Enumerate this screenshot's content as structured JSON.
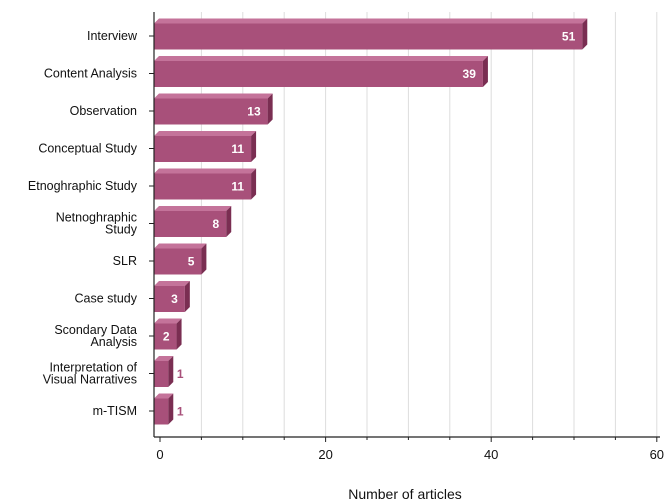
{
  "chart_data": {
    "type": "bar",
    "orientation": "horizontal",
    "categories": [
      "Interview",
      "Content Analysis",
      "Observation",
      "Conceptual Study",
      "Etnoghraphic Study",
      "Netnoghraphic Study",
      "SLR",
      "Case study",
      "Scondary Data Analysis",
      "Interpretation of Visual Narratives",
      "m-TISM"
    ],
    "category_lines": [
      [
        "Interview"
      ],
      [
        "Content Analysis"
      ],
      [
        "Observation"
      ],
      [
        "Conceptual Study"
      ],
      [
        "Etnoghraphic Study"
      ],
      [
        "Netnoghraphic",
        "Study"
      ],
      [
        "SLR"
      ],
      [
        "Case study"
      ],
      [
        "Scondary Data",
        "Analysis"
      ],
      [
        "Interpretation of",
        "Visual Narratives"
      ],
      [
        "m-TISM"
      ]
    ],
    "values": [
      51,
      39,
      13,
      11,
      11,
      8,
      5,
      3,
      2,
      1,
      1
    ],
    "xlabel": "Number of articles",
    "ylabel": "",
    "title": "",
    "xlim": [
      0,
      60
    ],
    "xticks": [
      "0",
      "20",
      "40",
      "60"
    ],
    "grid": true,
    "colors": {
      "bar_front": "#a8507a",
      "bar_top": "#c4739a",
      "bar_side": "#7a2e52",
      "label_inside": "#ffffff",
      "label_outside": "#a8507a",
      "grid": "#dddddd",
      "axis": "#222222"
    }
  }
}
